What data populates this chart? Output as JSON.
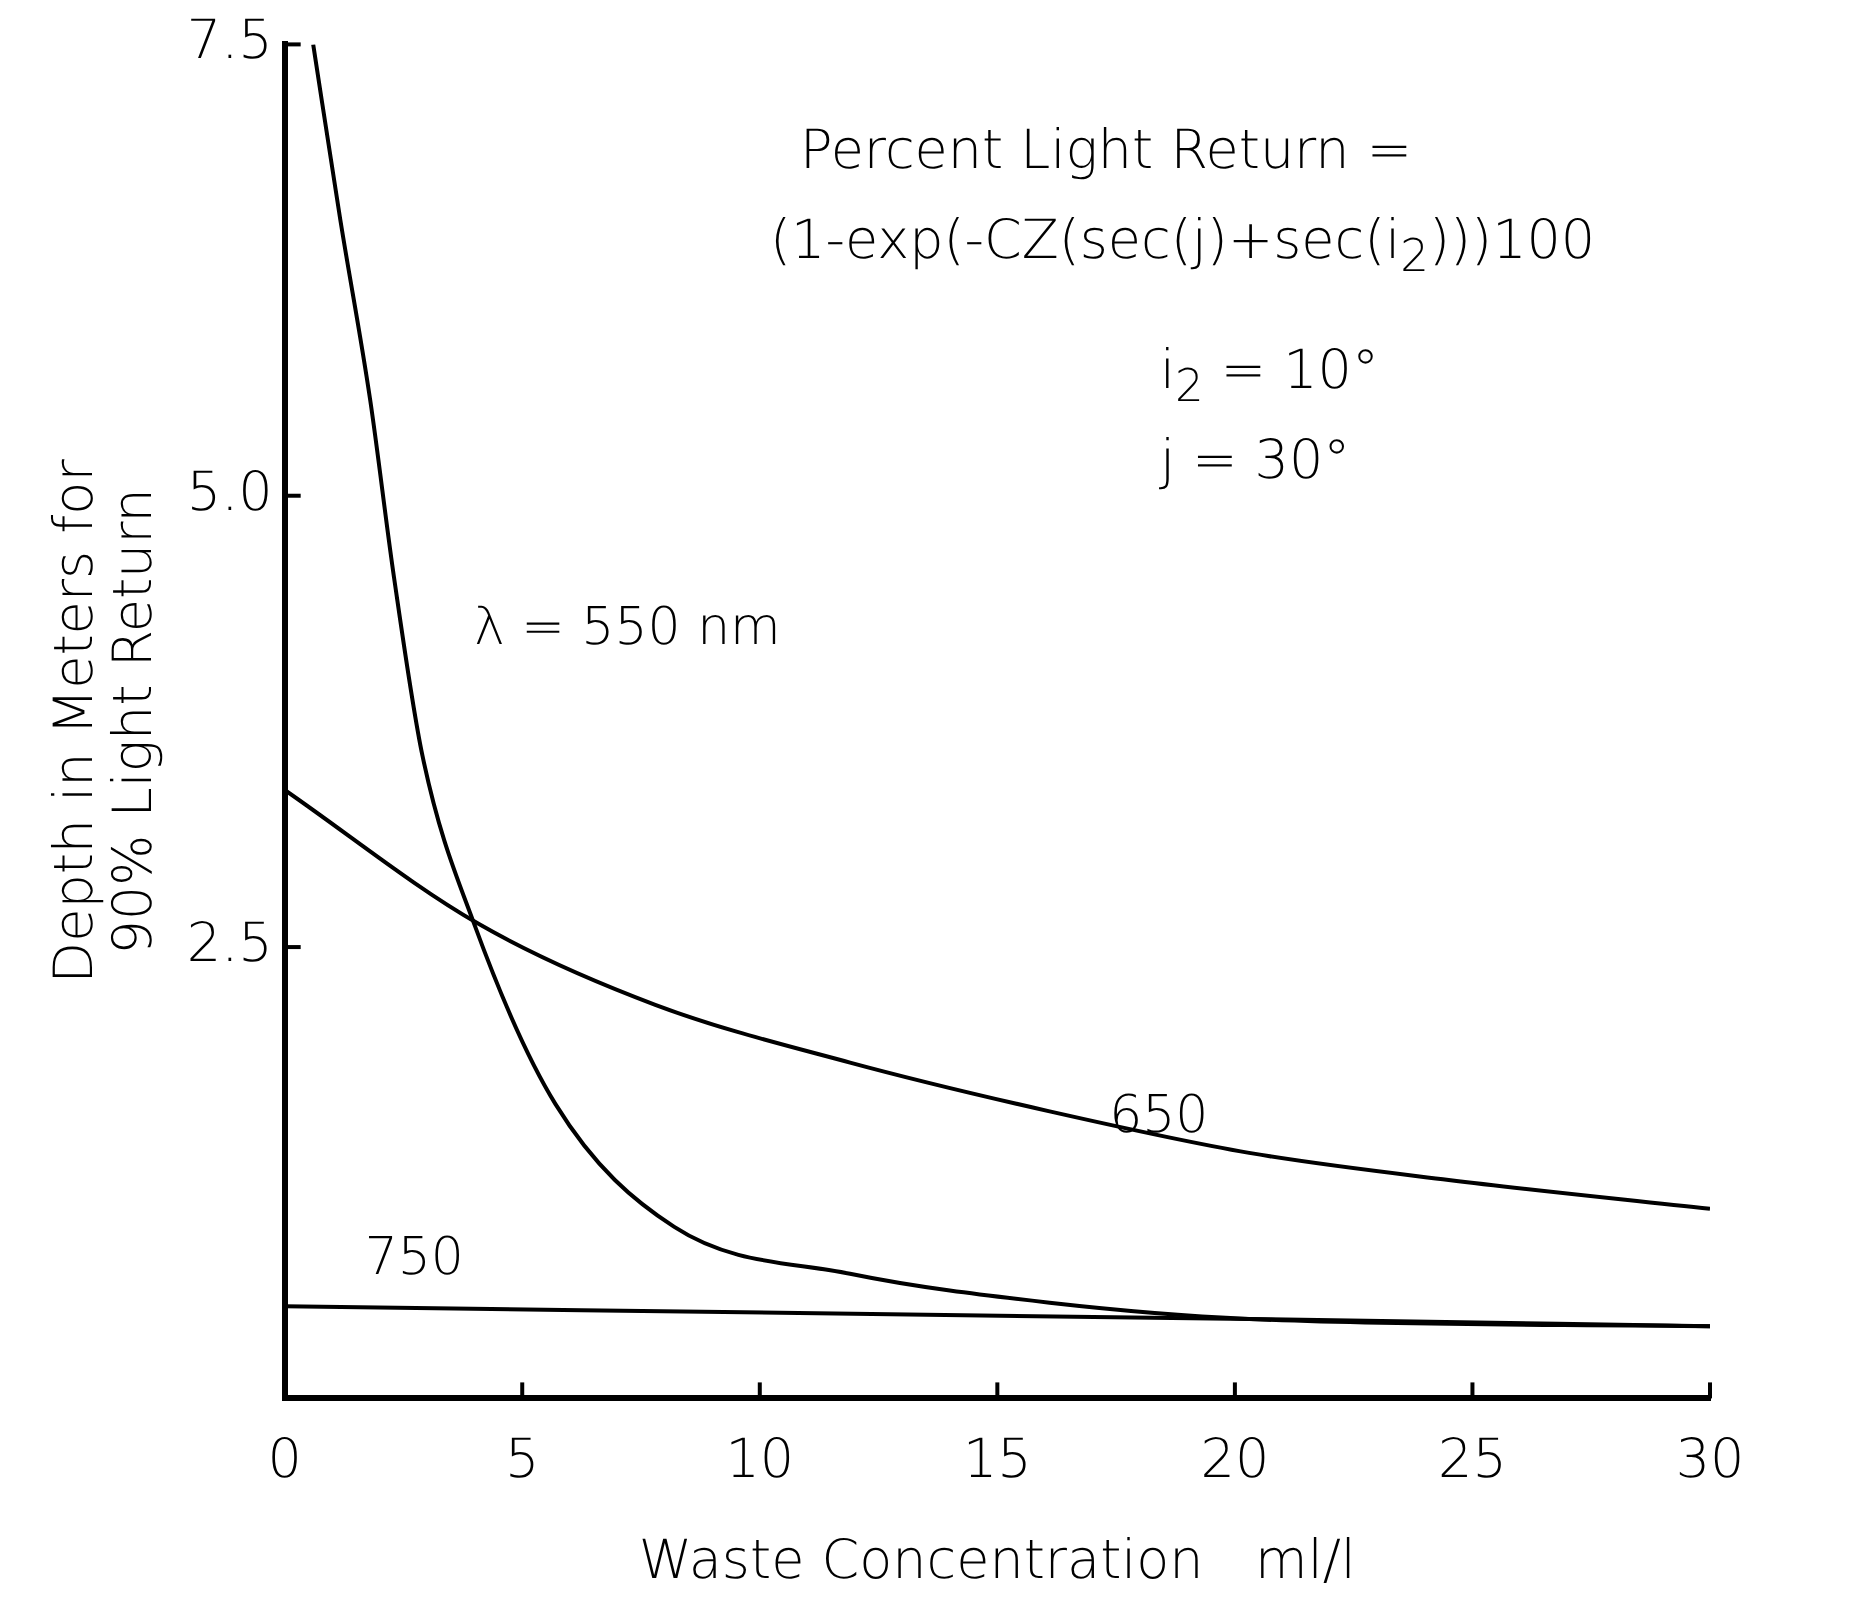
{
  "chart_data": {
    "type": "line",
    "xlabel": "Waste Concentration   ml/l",
    "ylabel": "Depth in Meters for 90% Light Return",
    "xlim": [
      0,
      30
    ],
    "xticks": [
      0,
      5,
      10,
      15,
      20,
      25,
      30
    ],
    "ylim": [
      0,
      7.5
    ],
    "yticks": [
      {
        "value": 2.5,
        "label": "2.5"
      },
      {
        "value": 5,
        "label": "5.0"
      },
      {
        "value": 7.5,
        "label": "7.5"
      }
    ],
    "grid": false,
    "legend": false,
    "marker": "none",
    "line_style": "solid",
    "annotations": [
      "Percent Light Return =",
      "(1-exp(-CZ(sec(j)+sec(i$_{2}$)))100",
      "i$_{2}$ = 10°",
      "j = 30°"
    ],
    "series": [
      {
        "name": "λ = 550 nm",
        "color": "#000000",
        "x": [
          0.6,
          1.17,
          1.8,
          2.3,
          2.9,
          4.0,
          5.7,
          8.2,
          11.9,
          16.1,
          20.3,
          30
        ],
        "values": [
          7.5,
          6.53,
          5.53,
          4.55,
          3.56,
          2.62,
          1.63,
          0.95,
          0.69,
          0.53,
          0.44,
          0.4
        ]
      },
      {
        "name": "650",
        "color": "#000000",
        "x": [
          0,
          4.07,
          7.8,
          11.9,
          16.1,
          20.3,
          24.5,
          30
        ],
        "values": [
          3.37,
          2.63,
          2.18,
          1.86,
          1.59,
          1.36,
          1.21,
          1.05
        ]
      },
      {
        "name": "750",
        "color": "#000000",
        "x": [
          0,
          20.3,
          30
        ],
        "values": [
          0.51,
          0.44,
          0.4
        ]
      }
    ]
  }
}
